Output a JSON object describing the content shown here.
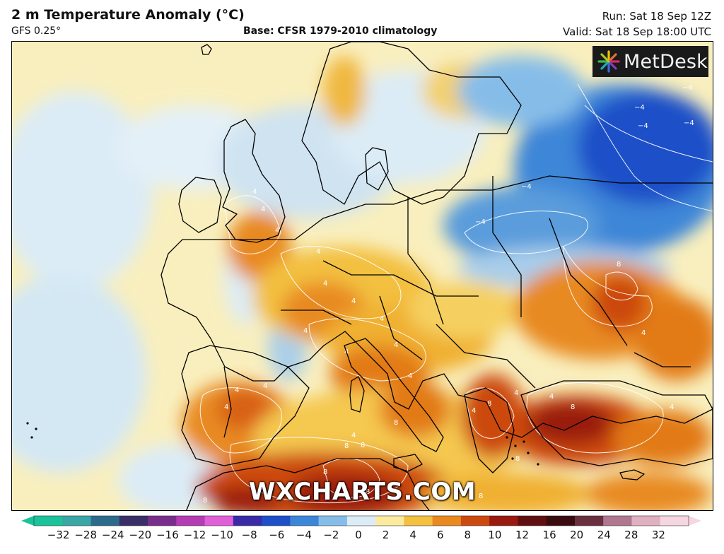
{
  "header": {
    "title": "2 m Temperature Anomaly (°C)",
    "model": "GFS 0.25°",
    "base": "Base: CFSR 1979-2010 climatology",
    "run": "Run: Sat 18 Sep 12Z",
    "valid": "Valid: Sat 18 Sep 18:00 UTC"
  },
  "logo": {
    "text": "MetDesk"
  },
  "watermark": "WXCHARTS.COM",
  "colorbar": {
    "ticks": [
      "−32",
      "−28",
      "−24",
      "−20",
      "−16",
      "−12",
      "−10",
      "−8",
      "−6",
      "−4",
      "−2",
      "0",
      "2",
      "4",
      "6",
      "8",
      "10",
      "12",
      "16",
      "20",
      "24",
      "28",
      "32"
    ],
    "colors": [
      "#1cc39a",
      "#3aa6a6",
      "#2d6b8c",
      "#3a2f66",
      "#7a2e8c",
      "#b43cb4",
      "#e060d8",
      "#3a2aa8",
      "#1f4fc8",
      "#3c86d8",
      "#86bde8",
      "#dcecf6",
      "#fbeaa0",
      "#f3c040",
      "#e88a20",
      "#cc4a10",
      "#9a1a10",
      "#601010",
      "#3a0c10",
      "#6a3040",
      "#b07890",
      "#e0b0c0",
      "#f6d6e0"
    ],
    "tail_left": "#1cc39a",
    "tail_right": "#f6d6e0"
  },
  "map": {
    "contour_labels": [
      "4",
      "4",
      "4",
      "4",
      "4",
      "4",
      "4",
      "4",
      "4",
      "4",
      "4",
      "4",
      "4",
      "4",
      "4",
      "4",
      "4",
      "4",
      "4",
      "4",
      "−4",
      "−4",
      "−4",
      "−4",
      "−4",
      "−4",
      "8",
      "8",
      "8",
      "8",
      "8",
      "8",
      "8",
      "8",
      "8",
      "8",
      "8"
    ]
  }
}
